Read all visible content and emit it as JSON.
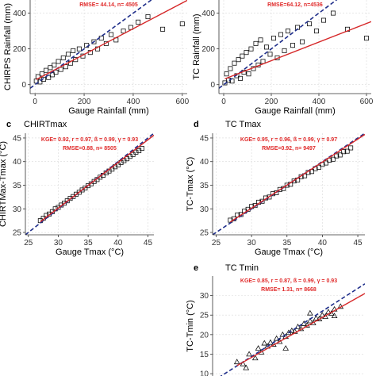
{
  "chart_data": [
    {
      "type": "scatter",
      "panel_label": "",
      "title": "",
      "stats": [
        "RMSE= 44.14, n= 4505"
      ],
      "xlabel": "Gauge Rainfall (mm)",
      "ylabel": "CHIRPS Rainfall (mm)",
      "xlim": [
        -20,
        620
      ],
      "ylim": [
        -50,
        500
      ],
      "xticks": [
        0,
        200,
        400,
        600
      ],
      "yticks": [
        0,
        200,
        400
      ],
      "xtick_labels": [
        "0",
        "200",
        "400",
        "600"
      ],
      "ytick_labels": [
        "0",
        "200",
        "400"
      ],
      "marker": "square",
      "fit": {
        "intercept": 25,
        "slope": 0.72
      },
      "one_to_one": true,
      "points": {
        "x": [
          5,
          12,
          20,
          28,
          35,
          45,
          55,
          62,
          70,
          78,
          85,
          95,
          105,
          115,
          125,
          135,
          145,
          155,
          165,
          180,
          195,
          210,
          225,
          240,
          255,
          270,
          290,
          310,
          330,
          360,
          390,
          420,
          460,
          520,
          600
        ],
        "y": [
          20,
          45,
          15,
          60,
          30,
          80,
          40,
          95,
          55,
          110,
          70,
          130,
          85,
          150,
          100,
          170,
          120,
          190,
          140,
          200,
          160,
          220,
          180,
          240,
          200,
          260,
          230,
          280,
          250,
          300,
          320,
          350,
          380,
          310,
          340
        ]
      }
    },
    {
      "type": "scatter",
      "panel_label": "",
      "title": "",
      "stats": [
        "RMSE=64.12, n=4536"
      ],
      "xlabel": "Gauge Rainfall (mm)",
      "ylabel": "TC Rainfall (mm)",
      "xlim": [
        -20,
        620
      ],
      "ylim": [
        -50,
        500
      ],
      "xticks": [
        0,
        200,
        400,
        600
      ],
      "yticks": [
        0,
        200,
        400
      ],
      "xtick_labels": [
        "0",
        "200",
        "400",
        "600"
      ],
      "ytick_labels": [
        "0",
        "200",
        "400"
      ],
      "marker": "square",
      "fit": {
        "intercept": 30,
        "slope": 0.52
      },
      "one_to_one": true,
      "points": {
        "x": [
          5,
          12,
          20,
          28,
          35,
          45,
          55,
          62,
          70,
          78,
          85,
          95,
          105,
          115,
          125,
          135,
          145,
          155,
          165,
          180,
          195,
          210,
          225,
          240,
          255,
          270,
          290,
          310,
          330,
          360,
          390,
          420,
          460,
          520,
          600
        ],
        "y": [
          10,
          60,
          25,
          90,
          20,
          120,
          50,
          140,
          35,
          160,
          70,
          180,
          60,
          200,
          90,
          230,
          110,
          250,
          130,
          210,
          170,
          260,
          150,
          280,
          190,
          300,
          220,
          320,
          240,
          340,
          300,
          360,
          400,
          310,
          260
        ]
      }
    },
    {
      "type": "scatter",
      "panel_label": "c",
      "title": "CHIRTmax",
      "stats": [
        "KGE= 0.92, r = 0.97, ß = 0.99, γ = 0.93",
        "RMSE=0.88, n= 8505"
      ],
      "xlabel": "Gauge Tmax (°C)",
      "ylabel": "CHIRTMax-Tmax (°C)",
      "xlim": [
        24.5,
        46
      ],
      "ylim": [
        24.5,
        46
      ],
      "xticks": [
        25,
        30,
        35,
        40,
        45
      ],
      "yticks": [
        25,
        30,
        35,
        40,
        45
      ],
      "xtick_labels": [
        "25",
        "30",
        "35",
        "40",
        "45"
      ],
      "ytick_labels": [
        "25",
        "30",
        "35",
        "40",
        "45"
      ],
      "marker": "square",
      "fit": {
        "intercept": 1.2,
        "slope": 0.965
      },
      "one_to_one": true,
      "points": {
        "x": [
          27.0,
          27.5,
          28.0,
          28.5,
          29.0,
          29.5,
          30.0,
          30.5,
          31.0,
          31.5,
          32.0,
          32.5,
          33.0,
          33.5,
          34.0,
          34.5,
          35.0,
          35.5,
          36.0,
          36.5,
          37.0,
          37.5,
          38.0,
          38.5,
          39.0,
          39.5,
          40.0,
          40.5,
          41.0,
          41.5,
          42.0,
          42.5,
          43.0,
          43.5,
          44.0
        ],
        "y": [
          27.5,
          28.0,
          28.6,
          28.9,
          29.4,
          30.0,
          30.3,
          30.8,
          31.2,
          31.7,
          32.2,
          32.6,
          33.1,
          33.5,
          34.0,
          34.4,
          34.9,
          35.3,
          35.8,
          36.2,
          36.7,
          37.1,
          37.6,
          38.0,
          38.4,
          38.9,
          39.3,
          39.8,
          40.2,
          40.6,
          41.1,
          41.5,
          42.0,
          42.3,
          42.8
        ]
      }
    },
    {
      "type": "scatter",
      "panel_label": "d",
      "title": "TC Tmax",
      "stats": [
        "KGE= 0.95, r = 0.96, ß = 0.99, γ = 0.97",
        "RMSE=0.92, n= 9497"
      ],
      "xlabel": "Gauge Tmax (°C)",
      "ylabel": "TC-Tmax (°C)",
      "xlim": [
        24.5,
        46
      ],
      "ylim": [
        24.5,
        46
      ],
      "xticks": [
        25,
        30,
        35,
        40,
        45
      ],
      "yticks": [
        25,
        30,
        35,
        40,
        45
      ],
      "xtick_labels": [
        "25",
        "30",
        "35",
        "40",
        "45"
      ],
      "ytick_labels": [
        "25",
        "30",
        "35",
        "40",
        "45"
      ],
      "marker": "square",
      "fit": {
        "intercept": 0.9,
        "slope": 0.975
      },
      "one_to_one": true,
      "points": {
        "x": [
          27.0,
          27.5,
          28.0,
          28.5,
          29.0,
          29.5,
          30.0,
          30.5,
          31.0,
          31.5,
          32.0,
          32.5,
          33.0,
          33.5,
          34.0,
          34.5,
          35.0,
          35.5,
          36.0,
          36.5,
          37.0,
          37.5,
          38.0,
          38.5,
          39.0,
          39.5,
          40.0,
          40.5,
          41.0,
          41.5,
          42.0,
          42.5,
          43.0,
          43.5,
          44.0
        ],
        "y": [
          27.6,
          27.9,
          28.7,
          28.8,
          29.5,
          29.9,
          30.5,
          30.7,
          31.4,
          31.6,
          32.3,
          32.5,
          33.2,
          33.4,
          34.1,
          34.3,
          35.0,
          35.2,
          35.9,
          36.1,
          36.8,
          37.0,
          37.7,
          37.9,
          38.5,
          38.8,
          39.4,
          39.7,
          40.3,
          40.5,
          41.2,
          41.4,
          42.1,
          42.2,
          42.9
        ]
      }
    },
    {
      "type": "scatter",
      "panel_label": "e",
      "title": "TC Tmin",
      "stats": [
        "KGE= 0.85, r = 0.87, ß = 0.99, γ = 0.93",
        "RMSE= 1.31, n= 8668"
      ],
      "xlabel": "",
      "ylabel": "TC-Tmin (°C)",
      "xlim": [
        8,
        33
      ],
      "ylim": [
        9,
        35
      ],
      "xticks": [],
      "yticks": [
        10,
        15,
        20,
        25,
        30
      ],
      "xtick_labels": [],
      "ytick_labels": [
        "10",
        "15",
        "20",
        "25",
        "30"
      ],
      "marker": "triangle",
      "fit": {
        "intercept": 1.5,
        "slope": 0.88
      },
      "one_to_one": true,
      "points": {
        "x": [
          12,
          13,
          14,
          15,
          15.5,
          16,
          17,
          17.5,
          18,
          18.5,
          19,
          19.5,
          20,
          20.5,
          21,
          21.5,
          22,
          22.5,
          23,
          23.5,
          24,
          24.5,
          25,
          25.5,
          26,
          26.5,
          27,
          27.5,
          28,
          29,
          13.5,
          16.5,
          20,
          24,
          28
        ],
        "y": [
          13,
          12.5,
          15,
          14,
          16.5,
          15.5,
          17,
          18,
          17.5,
          19,
          18.2,
          20,
          19.5,
          20.5,
          21,
          20.8,
          22,
          21.5,
          22.8,
          22.4,
          23.5,
          23,
          24.2,
          24,
          25,
          24.6,
          25.8,
          25.4,
          26.5,
          27.2,
          11.5,
          17.8,
          16.5,
          25.5,
          24.8
        ]
      }
    }
  ],
  "colors": {
    "points": "#111111",
    "fit_line": "#d62728",
    "one_to_one": "#1f2e8a",
    "grid": "#d9d9d9"
  }
}
